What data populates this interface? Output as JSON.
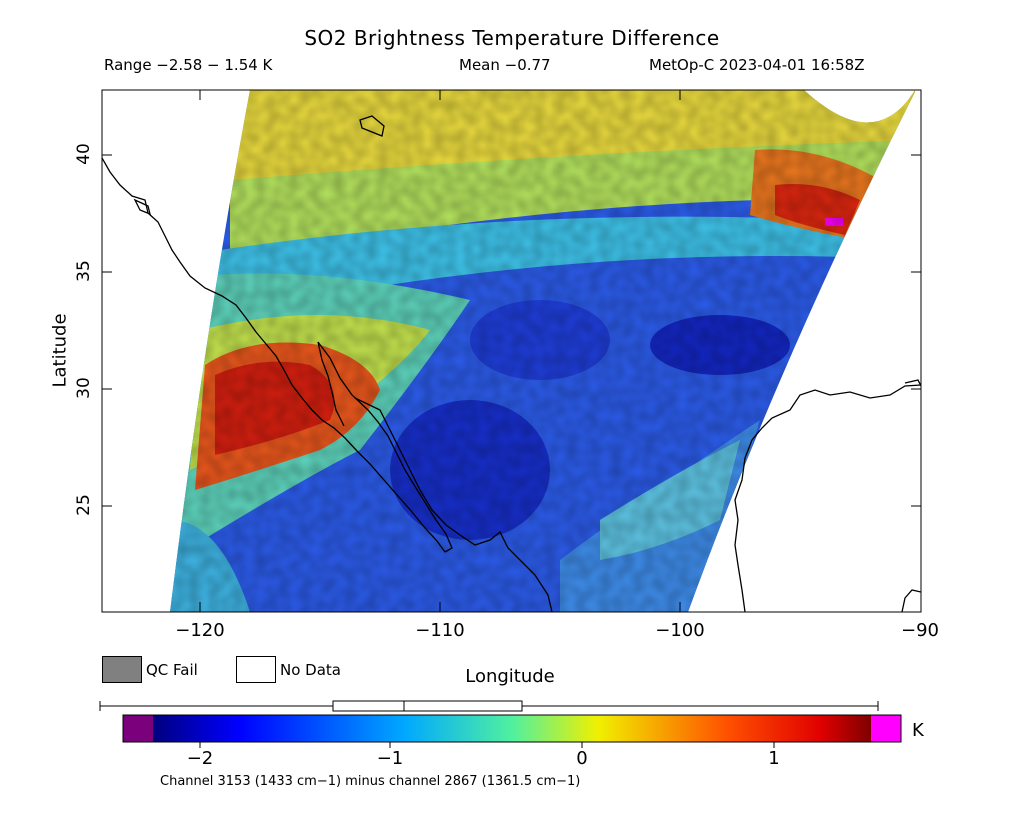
{
  "title": "SO2 Brightness Temperature Difference",
  "range_text": "Range −2.58 − 1.54 K",
  "mean_text": "Mean −0.77",
  "satellite_text": "MetOp-C 2023-04-01 16:58Z",
  "map": {
    "lon_min": -124,
    "lon_max": -90,
    "lat_min": 20.5,
    "lat_max": 42.7,
    "lat_ticks": [
      "40",
      "35",
      "30",
      "25"
    ],
    "lon_ticks": [
      "−120",
      "−110",
      "−100",
      "−90"
    ],
    "xlabel": "Longitude",
    "ylabel": "Latitude"
  },
  "legend": {
    "qc_fail": "QC Fail",
    "no_data": "No Data",
    "qc_color": "#808080",
    "nodata_color": "#ffffff"
  },
  "colorbar": {
    "min": -2.4,
    "max": 1.6,
    "tick_labels": [
      "−2",
      "−1",
      "0",
      "1"
    ],
    "tick_values": [
      -2,
      -1,
      0,
      1
    ],
    "unit": "K",
    "under_color": "#7b007b",
    "over_color": "#ff00ff",
    "box_whisker": {
      "low": -2.58,
      "q1": -1.36,
      "median": -0.97,
      "q3": -0.34,
      "high": 1.54
    }
  },
  "footnote": "Channel 3153 (1433 cm−1) minus channel 2867 (1361.5 cm−1)"
}
